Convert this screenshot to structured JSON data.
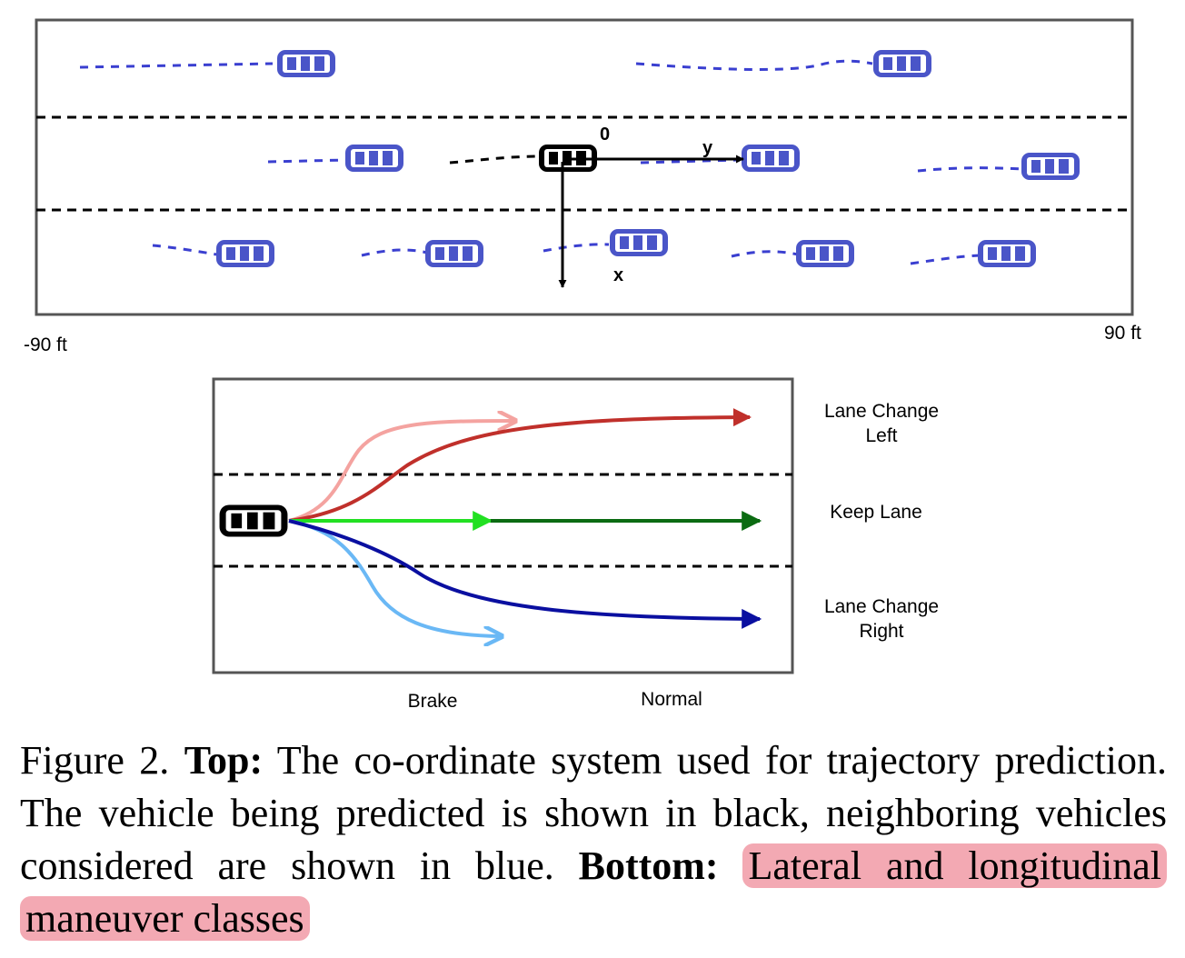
{
  "top_panel": {
    "origin_label": "0",
    "y_axis_label": "y",
    "x_axis_label": "x",
    "left_range_label": "-90 ft",
    "right_range_label": "90 ft"
  },
  "bottom_panel": {
    "class_labels": {
      "lane_change_left": [
        "Lane Change",
        "Left"
      ],
      "keep_lane": "Keep Lane",
      "lane_change_right": [
        "Lane Change",
        "Right"
      ],
      "brake": "Brake",
      "normal": "Normal"
    }
  },
  "colors": {
    "neighbor_vehicle": "#4a55c8",
    "ego_vehicle": "#000000",
    "left_brake": "#f4a3a0",
    "left_normal": "#c0302b",
    "keep_brake": "#22e022",
    "keep_normal": "#0b6b12",
    "right_brake": "#6ab8f5",
    "right_normal": "#0a0fa0",
    "caption_highlight": "#f3a9b3"
  },
  "caption": {
    "figure_label": "Figure 2.",
    "top_label": "Top:",
    "top_text": "The co-ordinate system used for trajectory prediction. The vehicle being predicted is shown in black, neighboring vehicles considered are shown in blue.",
    "bottom_label": "Bottom:",
    "bottom_text": "Lateral and longitudinal maneuver classes"
  }
}
